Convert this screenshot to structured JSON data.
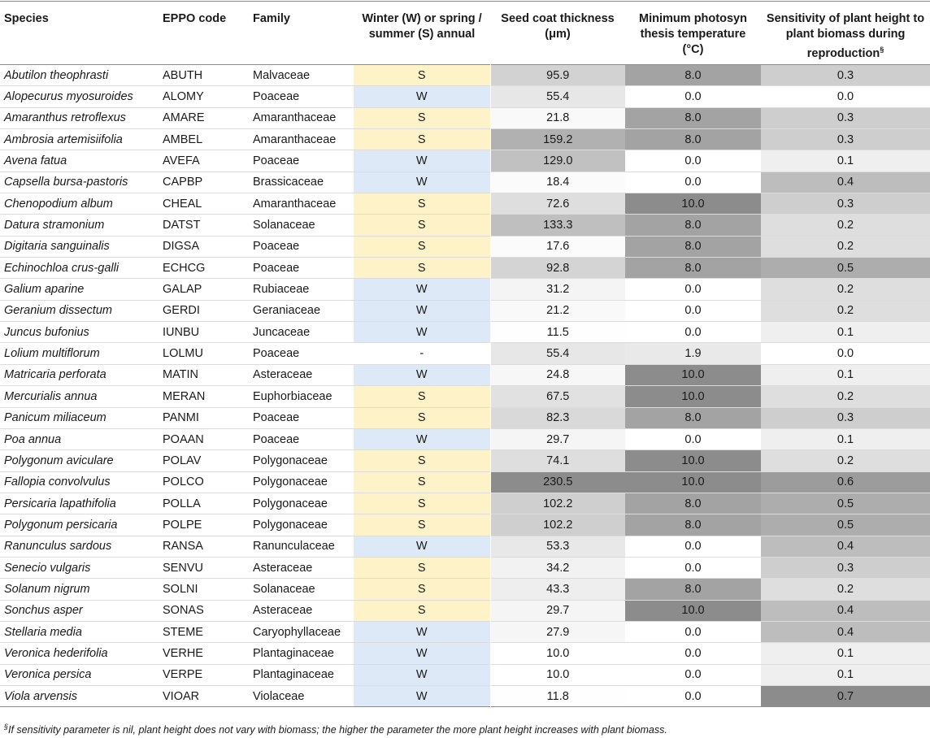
{
  "headers": {
    "species": "Species",
    "eppo": "EPPO code",
    "family": "Family",
    "winter": "Winter (W) or spring / summer (S) annual",
    "seed": "Seed coat thickness (μm)",
    "mintemp": "Minimum photosyn thesis temperature (°C)",
    "sensitivity": "Sensitivity of plant height to plant biomass during reproduction",
    "sensitivity_mark": "§"
  },
  "rows": [
    {
      "species": "Abutilon theophrasti",
      "eppo": "ABUTH",
      "family": "Malvaceae",
      "season": "S",
      "seed": "95.9",
      "temp": "8.0",
      "sens": "0.3"
    },
    {
      "species": "Alopecurus myosuroides",
      "eppo": "ALOMY",
      "family": "Poaceae",
      "season": "W",
      "seed": "55.4",
      "temp": "0.0",
      "sens": "0.0"
    },
    {
      "species": "Amaranthus retroflexus",
      "eppo": "AMARE",
      "family": "Amaranthaceae",
      "season": "S",
      "seed": "21.8",
      "temp": "8.0",
      "sens": "0.3"
    },
    {
      "species": "Ambrosia artemisiifolia",
      "eppo": "AMBEL",
      "family": "Amaranthaceae",
      "season": "S",
      "seed": "159.2",
      "temp": "8.0",
      "sens": "0.3"
    },
    {
      "species": "Avena fatua",
      "eppo": "AVEFA",
      "family": "Poaceae",
      "season": "W",
      "seed": "129.0",
      "temp": "0.0",
      "sens": "0.1"
    },
    {
      "species": "Capsella bursa-pastoris",
      "eppo": "CAPBP",
      "family": "Brassicaceae",
      "season": "W",
      "seed": "18.4",
      "temp": "0.0",
      "sens": "0.4"
    },
    {
      "species": "Chenopodium album",
      "eppo": "CHEAL",
      "family": "Amaranthaceae",
      "season": "S",
      "seed": "72.6",
      "temp": "10.0",
      "sens": "0.3"
    },
    {
      "species": "Datura stramonium",
      "eppo": "DATST",
      "family": "Solanaceae",
      "season": "S",
      "seed": "133.3",
      "temp": "8.0",
      "sens": "0.2"
    },
    {
      "species": "Digitaria sanguinalis",
      "eppo": "DIGSA",
      "family": "Poaceae",
      "season": "S",
      "seed": "17.6",
      "temp": "8.0",
      "sens": "0.2"
    },
    {
      "species": "Echinochloa crus-galli",
      "eppo": "ECHCG",
      "family": "Poaceae",
      "season": "S",
      "seed": "92.8",
      "temp": "8.0",
      "sens": "0.5"
    },
    {
      "species": "Galium aparine",
      "eppo": "GALAP",
      "family": "Rubiaceae",
      "season": "W",
      "seed": "31.2",
      "temp": "0.0",
      "sens": "0.2"
    },
    {
      "species": "Geranium dissectum",
      "eppo": "GERDI",
      "family": "Geraniaceae",
      "season": "W",
      "seed": "21.2",
      "temp": "0.0",
      "sens": "0.2"
    },
    {
      "species": "Juncus bufonius",
      "eppo": "IUNBU",
      "family": "Juncaceae",
      "season": "W",
      "seed": "11.5",
      "temp": "0.0",
      "sens": "0.1"
    },
    {
      "species": "Lolium multiflorum",
      "eppo": "LOLMU",
      "family": "Poaceae",
      "season": "-",
      "seed": "55.4",
      "temp": "1.9",
      "sens": "0.0"
    },
    {
      "species": "Matricaria perforata",
      "eppo": "MATIN",
      "family": "Asteraceae",
      "season": "W",
      "seed": "24.8",
      "temp": "10.0",
      "sens": "0.1"
    },
    {
      "species": "Mercurialis annua",
      "eppo": "MERAN",
      "family": "Euphorbiaceae",
      "season": "S",
      "seed": "67.5",
      "temp": "10.0",
      "sens": "0.2"
    },
    {
      "species": "Panicum miliaceum",
      "eppo": "PANMI",
      "family": "Poaceae",
      "season": "S",
      "seed": "82.3",
      "temp": "8.0",
      "sens": "0.3"
    },
    {
      "species": "Poa annua",
      "eppo": "POAAN",
      "family": "Poaceae",
      "season": "W",
      "seed": "29.7",
      "temp": "0.0",
      "sens": "0.1"
    },
    {
      "species": "Polygonum aviculare",
      "eppo": "POLAV",
      "family": "Polygonaceae",
      "season": "S",
      "seed": "74.1",
      "temp": "10.0",
      "sens": "0.2"
    },
    {
      "species": "Fallopia convolvulus",
      "eppo": "POLCO",
      "family": "Polygonaceae",
      "season": "S",
      "seed": "230.5",
      "temp": "10.0",
      "sens": "0.6"
    },
    {
      "species": "Persicaria lapathifolia",
      "eppo": "POLLA",
      "family": "Polygonaceae",
      "season": "S",
      "seed": "102.2",
      "temp": "8.0",
      "sens": "0.5"
    },
    {
      "species": "Polygonum persicaria",
      "eppo": "POLPE",
      "family": "Polygonaceae",
      "season": "S",
      "seed": "102.2",
      "temp": "8.0",
      "sens": "0.5"
    },
    {
      "species": "Ranunculus sardous",
      "eppo": "RANSA",
      "family": "Ranunculaceae",
      "season": "W",
      "seed": "53.3",
      "temp": "0.0",
      "sens": "0.4"
    },
    {
      "species": "Senecio vulgaris",
      "eppo": "SENVU",
      "family": "Asteraceae",
      "season": "S",
      "seed": "34.2",
      "temp": "0.0",
      "sens": "0.3"
    },
    {
      "species": "Solanum nigrum",
      "eppo": "SOLNI",
      "family": "Solanaceae",
      "season": "S",
      "seed": "43.3",
      "temp": "8.0",
      "sens": "0.2"
    },
    {
      "species": "Sonchus asper",
      "eppo": "SONAS",
      "family": "Asteraceae",
      "season": "S",
      "seed": "29.7",
      "temp": "10.0",
      "sens": "0.4"
    },
    {
      "species": "Stellaria media",
      "eppo": "STEME",
      "family": "Caryophyllaceae",
      "season": "W",
      "seed": "27.9",
      "temp": "0.0",
      "sens": "0.4"
    },
    {
      "species": "Veronica hederifolia",
      "eppo": "VERHE",
      "family": "Plantaginaceae",
      "season": "W",
      "seed": "10.0",
      "temp": "0.0",
      "sens": "0.1"
    },
    {
      "species": "Veronica persica",
      "eppo": "VERPE",
      "family": "Plantaginaceae",
      "season": "W",
      "seed": "10.0",
      "temp": "0.0",
      "sens": "0.1"
    },
    {
      "species": "Viola arvensis",
      "eppo": "VIOAR",
      "family": "Violaceae",
      "season": "W",
      "seed": "11.8",
      "temp": "0.0",
      "sens": "0.7"
    }
  ],
  "footnote": {
    "mark": "§",
    "text": "If sensitivity parameter is nil, plant height does not vary with biomass; the higher the parameter the more plant height increases with plant biomass."
  },
  "colors": {
    "spring_summer": "#fdf2c8",
    "winter": "#dde9f6",
    "heat_light": "#ffffff",
    "heat_dark": "#8c8c8c"
  },
  "shading_scales": {
    "seed_min": 10.0,
    "seed_max": 230.5,
    "temp_min": 0.0,
    "temp_max": 10.0,
    "sens_min": 0.0,
    "sens_max": 0.7
  }
}
